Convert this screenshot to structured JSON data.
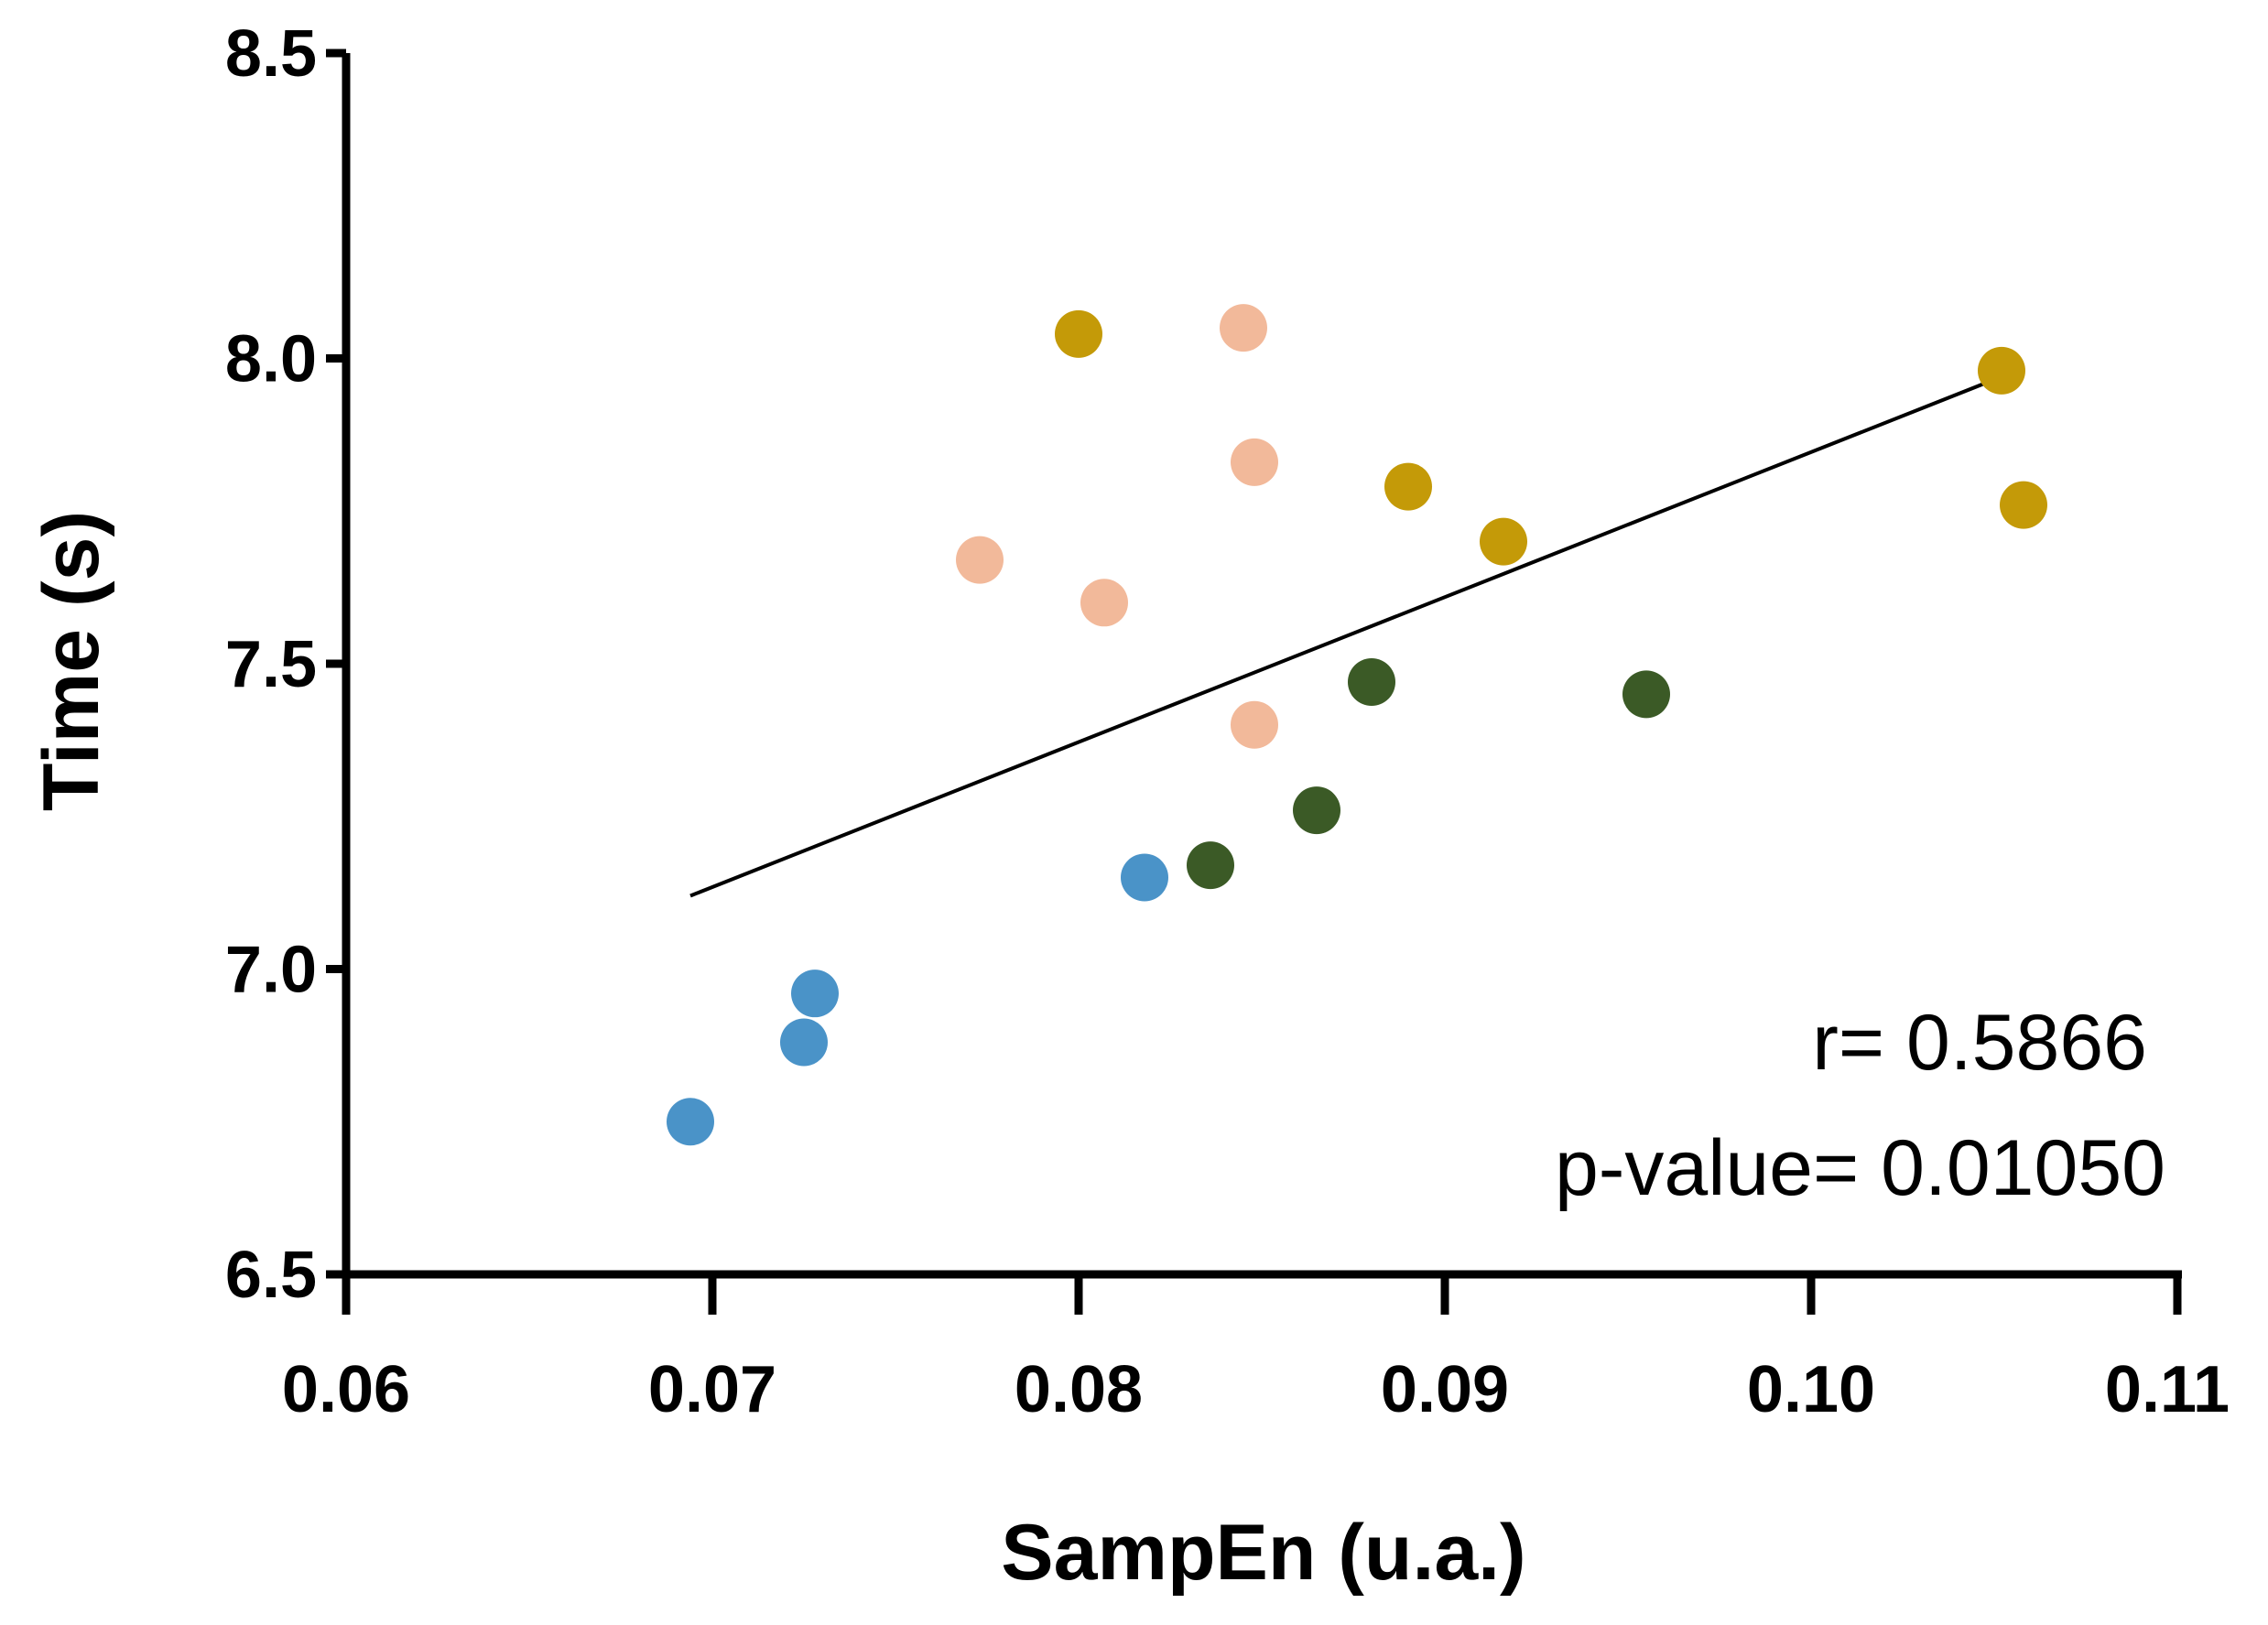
{
  "chart_data": {
    "type": "scatter",
    "title": "",
    "xlabel": "SampEn (u.a.)",
    "ylabel": "Time (s)",
    "xlim": [
      0.06,
      0.11
    ],
    "ylim": [
      6.5,
      8.5
    ],
    "xticks": [
      "0.06",
      "0.07",
      "0.08",
      "0.09",
      "0.10",
      "0.11"
    ],
    "yticks": [
      "6.5",
      "7.0",
      "7.5",
      "8.0",
      "8.5"
    ],
    "grid": false,
    "series": [
      {
        "name": "blue",
        "color": "#4a93c8",
        "points": [
          {
            "x": 0.0694,
            "y": 6.75
          },
          {
            "x": 0.0725,
            "y": 6.88
          },
          {
            "x": 0.0728,
            "y": 6.96
          },
          {
            "x": 0.0818,
            "y": 7.15
          }
        ]
      },
      {
        "name": "dark-green",
        "color": "#3b5a26",
        "points": [
          {
            "x": 0.0836,
            "y": 7.17
          },
          {
            "x": 0.0865,
            "y": 7.26
          },
          {
            "x": 0.088,
            "y": 7.47
          },
          {
            "x": 0.0955,
            "y": 7.45
          }
        ]
      },
      {
        "name": "peach",
        "color": "#f2b99a",
        "points": [
          {
            "x": 0.0773,
            "y": 7.67
          },
          {
            "x": 0.0807,
            "y": 7.6
          },
          {
            "x": 0.0845,
            "y": 8.05
          },
          {
            "x": 0.0848,
            "y": 7.83
          },
          {
            "x": 0.0848,
            "y": 7.4
          }
        ]
      },
      {
        "name": "gold",
        "color": "#c49a08",
        "points": [
          {
            "x": 0.08,
            "y": 8.04
          },
          {
            "x": 0.089,
            "y": 7.79
          },
          {
            "x": 0.0916,
            "y": 7.7
          },
          {
            "x": 0.1052,
            "y": 7.98
          },
          {
            "x": 0.1058,
            "y": 7.76
          }
        ]
      }
    ],
    "regression_line": {
      "x1": 0.0694,
      "y1": 7.12,
      "x2": 0.1052,
      "y2": 7.97,
      "color": "#000000"
    },
    "annotations": {
      "r_text": "r= 0.5866",
      "p_text": "p-value= 0.01050"
    }
  }
}
